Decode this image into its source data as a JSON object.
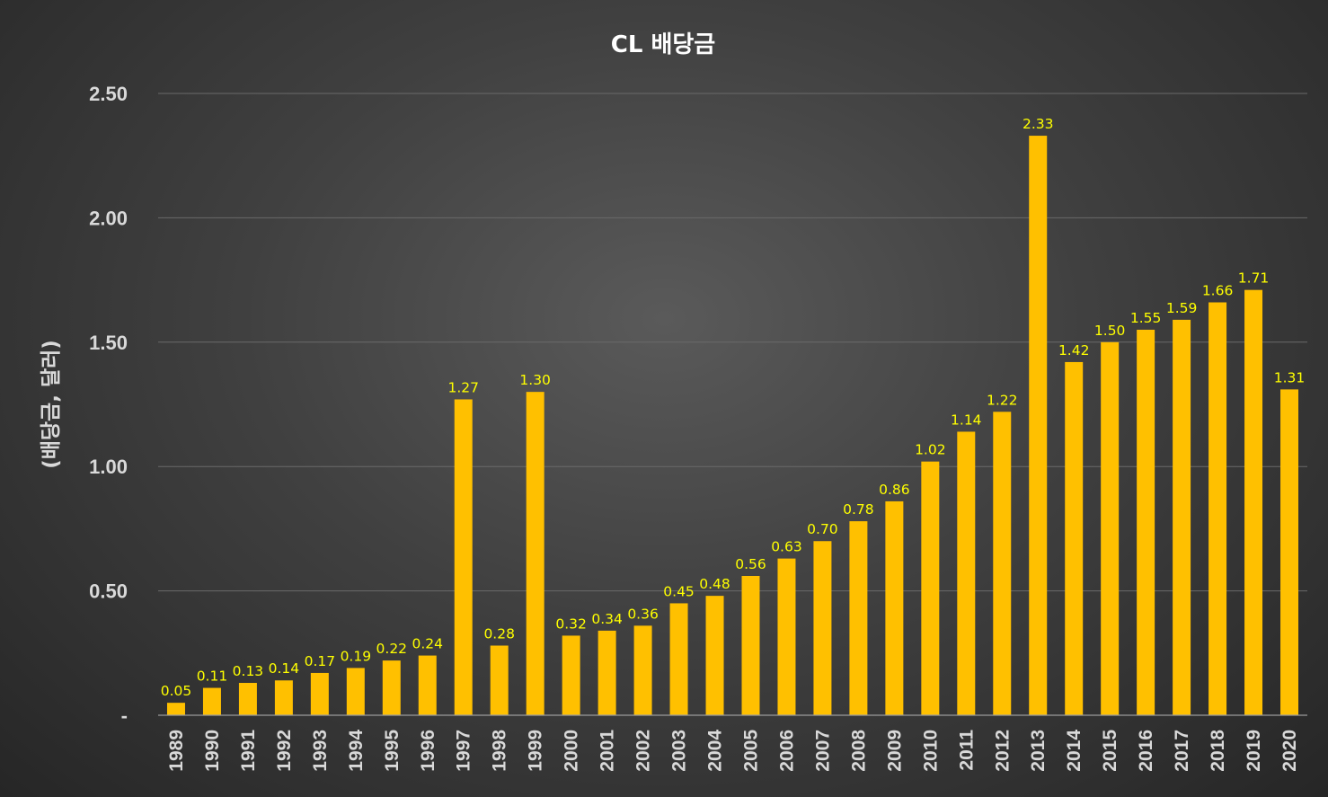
{
  "chart_data": {
    "type": "bar",
    "title": "CL 배당금",
    "xlabel": "",
    "ylabel": "(배당금, 달러)",
    "ylim": [
      0,
      2.5
    ],
    "yticks": [
      "-",
      "0.50",
      "1.00",
      "1.50",
      "2.00",
      "2.50"
    ],
    "ytick_values": [
      0,
      0.5,
      1.0,
      1.5,
      2.0,
      2.5
    ],
    "grid": true,
    "legend": "none",
    "bar_color": "#ffc000",
    "label_color": "#ffff00",
    "categories": [
      "1989",
      "1990",
      "1991",
      "1992",
      "1993",
      "1994",
      "1995",
      "1996",
      "1997",
      "1998",
      "1999",
      "2000",
      "2001",
      "2002",
      "2003",
      "2004",
      "2005",
      "2006",
      "2007",
      "2008",
      "2009",
      "2010",
      "2011",
      "2012",
      "2013",
      "2014",
      "2015",
      "2016",
      "2017",
      "2018",
      "2019",
      "2020"
    ],
    "values": [
      0.05,
      0.11,
      0.13,
      0.14,
      0.17,
      0.19,
      0.22,
      0.24,
      1.27,
      0.28,
      1.3,
      0.32,
      0.34,
      0.36,
      0.45,
      0.48,
      0.56,
      0.63,
      0.7,
      0.78,
      0.86,
      1.02,
      1.14,
      1.22,
      2.33,
      1.42,
      1.5,
      1.55,
      1.59,
      1.66,
      1.71,
      1.31
    ],
    "data_labels": [
      "0.05",
      "0.11",
      "0.13",
      "0.14",
      "0.17",
      "0.19",
      "0.22",
      "0.24",
      "1.27",
      "0.28",
      "1.30",
      "0.32",
      "0.34",
      "0.36",
      "0.45",
      "0.48",
      "0.56",
      "0.63",
      "0.70",
      "0.78",
      "0.86",
      "1.02",
      "1.14",
      "1.22",
      "2.33",
      "1.42",
      "1.50",
      "1.55",
      "1.59",
      "1.66",
      "1.71",
      "1.31"
    ]
  }
}
